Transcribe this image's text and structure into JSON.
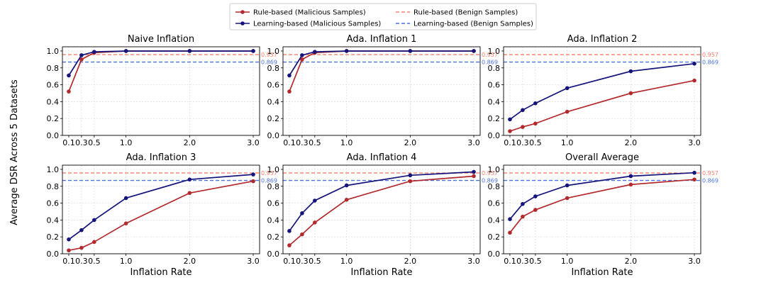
{
  "chart_data": {
    "type": "line",
    "ylabel": "Average DSR Across 5 Datasets",
    "xlabel": "Inflation Rate",
    "x": [
      0.1,
      0.3,
      0.5,
      1.0,
      2.0,
      3.0
    ],
    "x_tick_labels": [
      "0.1",
      "0.3",
      "0.5",
      "1.0",
      "2.0",
      "3.0"
    ],
    "ylim": [
      0.0,
      1.05
    ],
    "y_ticks": [
      0.0,
      0.2,
      0.4,
      0.6,
      0.8,
      1.0
    ],
    "y_tick_labels": [
      "0.0",
      "0.2",
      "0.4",
      "0.6",
      "0.8",
      "1.0"
    ],
    "grid": true,
    "legend": {
      "placement": "top-center",
      "entries": [
        {
          "label": "Rule-based (Malicious Samples)",
          "style": "solid-marker",
          "color": "#b22a2e"
        },
        {
          "label": "Learning-based (Malicious Samples)",
          "style": "solid-marker",
          "color": "#14147a"
        },
        {
          "label": "Rule-based (Benign Samples)",
          "style": "dashed",
          "color": "#f08070"
        },
        {
          "label": "Learning-based (Benign Samples)",
          "style": "dashed",
          "color": "#4a72d8"
        }
      ]
    },
    "reference_lines": [
      {
        "name": "Rule-based (Benign Samples)",
        "value": 0.957,
        "label": "0.957",
        "color": "#f08070"
      },
      {
        "name": "Learning-based (Benign Samples)",
        "value": 0.869,
        "label": "0.869",
        "color": "#4a72d8"
      }
    ],
    "panels": [
      {
        "title": "Naive Inflation",
        "series": [
          {
            "name": "Rule-based (Malicious Samples)",
            "color": "#b22a2e",
            "values": [
              0.52,
              0.9,
              0.98,
              1.0,
              1.0,
              1.0
            ]
          },
          {
            "name": "Learning-based (Malicious Samples)",
            "color": "#14147a",
            "values": [
              0.71,
              0.95,
              0.99,
              1.0,
              1.0,
              1.0
            ]
          }
        ]
      },
      {
        "title": "Ada. Inflation 1",
        "series": [
          {
            "name": "Rule-based (Malicious Samples)",
            "color": "#b22a2e",
            "values": [
              0.52,
              0.9,
              0.98,
              1.0,
              1.0,
              1.0
            ]
          },
          {
            "name": "Learning-based (Malicious Samples)",
            "color": "#14147a",
            "values": [
              0.71,
              0.95,
              0.99,
              1.0,
              1.0,
              1.0
            ]
          }
        ]
      },
      {
        "title": "Ada. Inflation 2",
        "series": [
          {
            "name": "Rule-based (Malicious Samples)",
            "color": "#b22a2e",
            "values": [
              0.05,
              0.1,
              0.14,
              0.28,
              0.5,
              0.65
            ]
          },
          {
            "name": "Learning-based (Malicious Samples)",
            "color": "#14147a",
            "values": [
              0.19,
              0.3,
              0.38,
              0.56,
              0.76,
              0.85
            ]
          }
        ]
      },
      {
        "title": "Ada. Inflation 3",
        "series": [
          {
            "name": "Rule-based (Malicious Samples)",
            "color": "#b22a2e",
            "values": [
              0.04,
              0.07,
              0.14,
              0.36,
              0.72,
              0.86
            ]
          },
          {
            "name": "Learning-based (Malicious Samples)",
            "color": "#14147a",
            "values": [
              0.17,
              0.28,
              0.4,
              0.66,
              0.88,
              0.94
            ]
          }
        ]
      },
      {
        "title": "Ada. Inflation 4",
        "series": [
          {
            "name": "Rule-based (Malicious Samples)",
            "color": "#b22a2e",
            "values": [
              0.1,
              0.23,
              0.37,
              0.64,
              0.86,
              0.92
            ]
          },
          {
            "name": "Learning-based (Malicious Samples)",
            "color": "#14147a",
            "values": [
              0.27,
              0.48,
              0.63,
              0.81,
              0.93,
              0.97
            ]
          }
        ]
      },
      {
        "title": "Overall Average",
        "series": [
          {
            "name": "Rule-based (Malicious Samples)",
            "color": "#b22a2e",
            "values": [
              0.25,
              0.44,
              0.52,
              0.66,
              0.82,
              0.88
            ]
          },
          {
            "name": "Learning-based (Malicious Samples)",
            "color": "#14147a",
            "values": [
              0.41,
              0.59,
              0.68,
              0.81,
              0.92,
              0.96
            ]
          }
        ]
      }
    ]
  }
}
